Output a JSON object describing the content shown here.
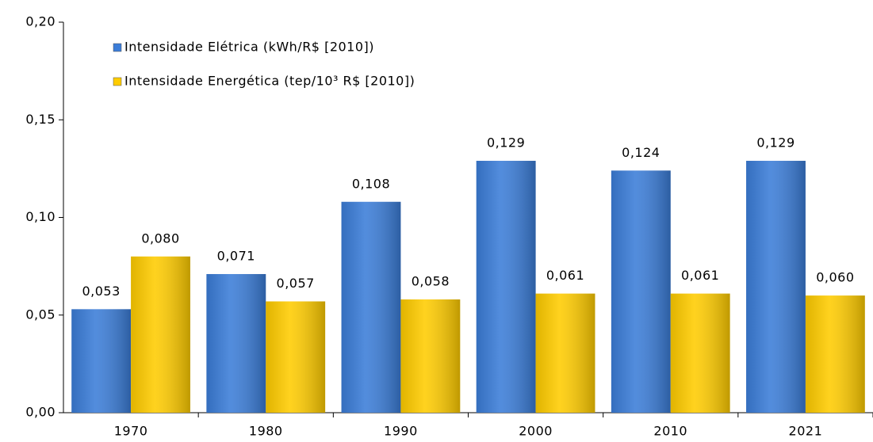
{
  "chart_data": {
    "type": "bar",
    "categories": [
      "1970",
      "1980",
      "1990",
      "2000",
      "2010",
      "2021"
    ],
    "series": [
      {
        "name": "Intensidade Elétrica (kWh/R$ [2010])",
        "color": "#3b7dd8",
        "values": [
          0.053,
          0.071,
          0.108,
          0.129,
          0.124,
          0.129
        ],
        "value_labels": [
          "0,053",
          "0,071",
          "0,108",
          "0,129",
          "0,124",
          "0,129"
        ]
      },
      {
        "name": "Intensidade Energética (tep/10³ R$ [2010])",
        "color": "#ffcc00",
        "values": [
          0.08,
          0.057,
          0.058,
          0.061,
          0.061,
          0.06
        ],
        "value_labels": [
          "0,080",
          "0,057",
          "0,058",
          "0,061",
          "0,061",
          "0,060"
        ]
      }
    ],
    "ylim": [
      0,
      0.2
    ],
    "yticks": [
      {
        "value": 0,
        "label": "0,00"
      },
      {
        "value": 0.05,
        "label": "0,05"
      },
      {
        "value": 0.1,
        "label": "0,10"
      },
      {
        "value": 0.15,
        "label": "0,15"
      },
      {
        "value": 0.2,
        "label": "0,20"
      }
    ],
    "legend": "top-left"
  }
}
